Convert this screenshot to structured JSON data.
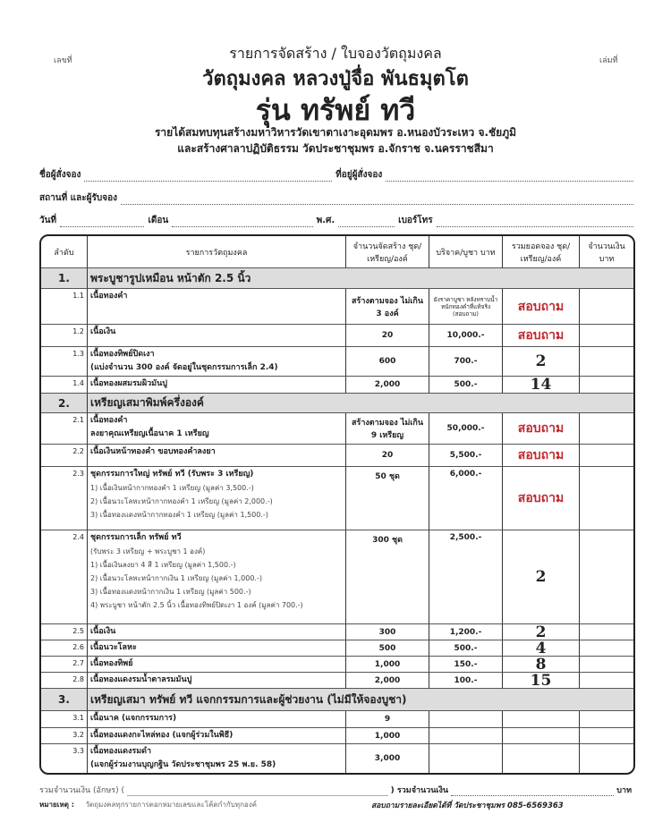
{
  "header": {
    "doc_no_label": "เลขที่",
    "book_no_label": "เล่มที่",
    "title1": "รายการจัดสร้าง / ใบจองวัตถุมงคล",
    "title2": "วัตถุมงคล หลวงปู่จื่อ พันธมุตโต",
    "title3": "รุ่น ทรัพย์ ทวี",
    "subtitle1": "รายได้สมทบทุนสร้างมหาวิหารวัดเขาตาเงาะอุดมพร อ.หนองบัวระเหว จ.ชัยภูมิ",
    "subtitle2": "และสร้างศาลาปฏิบัติธรรม วัดประชาชุมพร อ.จักราช จ.นครราชสีมา"
  },
  "fields": {
    "name": "ชื่อผู้สั่งจอง",
    "address": "ที่อยู่ผู้สั่งจอง",
    "place": "สถานที่ และผู้รับจอง",
    "date": "วันที่",
    "month": "เดือน",
    "year": "พ.ศ.",
    "phone": "เบอร์โทร"
  },
  "table": {
    "columns": [
      "ลำดับ",
      "รายการวัตถุมงคล",
      "จำนวนจัดสร้าง ชุด/เหรียญ/องค์",
      "บริจาค/บูชา บาท",
      "รวมยอดจอง ชุด/เหรียญ/องค์",
      "จำนวนเงิน บาท"
    ],
    "rows": [
      {
        "type": "section",
        "no": "1.",
        "title": "พระบูชารูปเหมือน หน้าตัก 2.5 นิ้ว"
      },
      {
        "no": "1.1",
        "lines": [
          "เนื้อทองคำ"
        ],
        "qty": "สร้างตามจอง ไม่เกิน 3 องค์",
        "price": "ยังราคาบูชา หลังทราบน้ำหนักทองคำที่แท้จริง (สอบถาม)",
        "booked": "สอบถาม",
        "ask": true
      },
      {
        "no": "1.2",
        "lines": [
          "เนื้อเงิน"
        ],
        "qty": "20",
        "price": "10,000.-",
        "booked": "สอบถาม",
        "ask": true
      },
      {
        "no": "1.3",
        "lines": [
          "เนื้อทองทิพย์ปิดเงา",
          "(แบ่งจำนวน 300 องค์ จัดอยู่ในชุดกรรมการเล็ก 2.4)"
        ],
        "qty": "600",
        "price": "700.-",
        "booked": "2"
      },
      {
        "no": "1.4",
        "lines": [
          "เนื้อทองผสมรมผิวมันปู"
        ],
        "qty": "2,000",
        "price": "500.-",
        "booked": "14"
      },
      {
        "type": "section",
        "no": "2.",
        "title": "เหรียญเสมาพิมพ์ครึ่งองค์"
      },
      {
        "no": "2.1",
        "lines": [
          "เนื้อทองคำ",
          "ลงยาคุณเหรียญเนื้อนาค 1 เหรียญ"
        ],
        "qty": "สร้างตามจอง ไม่เกิน 9 เหรียญ",
        "price": "50,000.-",
        "booked": "สอบถาม",
        "ask": true
      },
      {
        "no": "2.2",
        "lines": [
          "เนื้อเงินหน้าทองคำ ขอบทองคำลงยา"
        ],
        "qty": "20",
        "price": "5,500.-",
        "booked": "สอบถาม",
        "ask": true
      },
      {
        "no": "2.3",
        "lines": [
          "ชุดกรรมการใหญ่ ทรัพย์ ทวี (รับพระ 3 เหรียญ)",
          "1) เนื้อเงินหน้ากากทองคำ 1 เหรียญ (มูลค่า 3,500.-)",
          "2) เนื้อนวะโลหะหน้ากากทองคำ 1 เหรียญ (มูลค่า 2,000.-)",
          "3) เนื้อทองแดงหน้ากากทองคำ 1 เหรียญ (มูลค่า 1,500.-)"
        ],
        "qty": "50 ชุด",
        "price": "6,000.-",
        "booked": "สอบถาม",
        "ask": true
      },
      {
        "no": "2.4",
        "lines": [
          "ชุดกรรมการเล็ก ทรัพย์ ทวี",
          "(รับพระ 3 เหรียญ + พระบูชา 1 องค์)",
          "1) เนื้อเงินลงยา 4 สี 1 เหรียญ (มูลค่า 1,500.-)",
          "2) เนื้อนวะโลหะหน้ากากเงิน 1 เหรียญ (มูลค่า 1,000.-)",
          "3) เนื้อทองแดงหน้ากากเงิน 1 เหรียญ (มูลค่า 500.-)",
          "4) พระบูชา หน้าตัก 2.5 นิ้ว เนื้อทองทิพย์ปิดเงา 1 องค์ (มูลค่า 700.-)"
        ],
        "qty": "300 ชุด",
        "price": "2,500.-",
        "booked": "2"
      },
      {
        "no": "2.5",
        "lines": [
          "เนื้อเงิน"
        ],
        "qty": "300",
        "price": "1,200.-",
        "booked": "2"
      },
      {
        "no": "2.6",
        "lines": [
          "เนื้อนวะโลหะ"
        ],
        "qty": "500",
        "price": "500.-",
        "booked": "4"
      },
      {
        "no": "2.7",
        "lines": [
          "เนื้อทองทิพย์"
        ],
        "qty": "1,000",
        "price": "150.-",
        "booked": "8"
      },
      {
        "no": "2.8",
        "lines": [
          "เนื้อทองแดงรมน้ำตาลรมมันปู"
        ],
        "qty": "2,000",
        "price": "100.-",
        "booked": "15"
      },
      {
        "type": "section",
        "no": "3.",
        "title": "เหรียญเสมา ทรัพย์ ทวี แจกกรรมการและผู้ช่วยงาน (ไม่มีให้จองบูชา)"
      },
      {
        "no": "3.1",
        "lines": [
          "เนื้อนาค (แจกกรรมการ)"
        ],
        "qty": "9",
        "price": "",
        "booked": ""
      },
      {
        "no": "3.2",
        "lines": [
          "เนื้อทองแดงกะไหล่ทอง (แจกผู้ร่วมในพิธี)"
        ],
        "qty": "1,000",
        "price": "",
        "booked": ""
      },
      {
        "no": "3.3",
        "lines": [
          "เนื้อทองแดงรมดำ",
          "(แจกผู้ร่วมงานบุญกฐิน วัดประชาชุมพร 25 พ.ย. 58)"
        ],
        "qty": "3,000",
        "price": "",
        "booked": ""
      }
    ]
  },
  "footer": {
    "total_words_label": "รวมจำนวนเงิน (อักษร) (",
    "total_label": ") รวมจำนวนเงิน",
    "baht": "บาท",
    "note_label": "หมายเหตุ :",
    "note_text": "วัตถุมงคลทุกรายการตอกหมายเลขและโค้ดกำกับทุกองค์",
    "contact": "สอบถามรายละเอียดได้ที่ วัดประชาชุมพร 085-6569363"
  },
  "colors": {
    "ask": "#c0282e",
    "section_bg": "#dddddd"
  }
}
